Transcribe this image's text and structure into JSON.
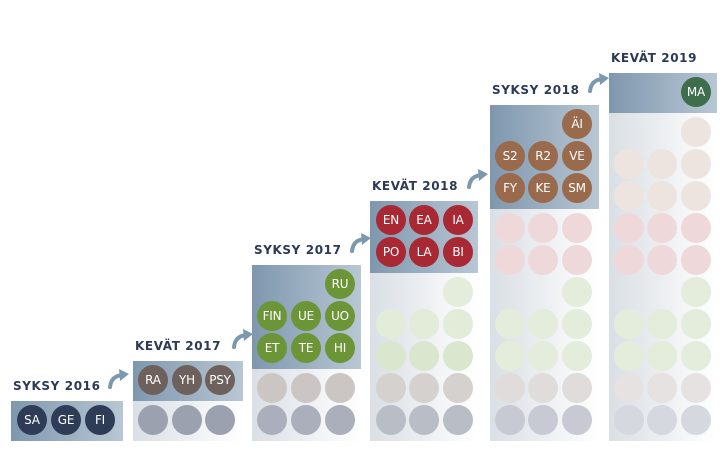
{
  "colors": {
    "navy": "#2f3c58",
    "taupe": "#6e605b",
    "green": "#6b9536",
    "red": "#a82934",
    "brown": "#9a6a4d",
    "darkgreen": "#3e6e4c",
    "arrow": "#7c98ad",
    "title": "#2c3a55"
  },
  "columns": [
    {
      "title": "SYKSY 2016",
      "highlight_color": "#2f3c58",
      "highlight_rows": [
        [
          "SA",
          "GE",
          "FI"
        ]
      ],
      "history_rows": []
    },
    {
      "title": "KEVÄT 2017",
      "highlight_color": "#6e605b",
      "highlight_rows": [
        [
          "RA",
          "YH",
          "PSY"
        ]
      ],
      "history_rows": [
        [
          "navy",
          "navy",
          "navy"
        ]
      ]
    },
    {
      "title": "SYKSY 2017",
      "highlight_color": "#6b9536",
      "highlight_rows": [
        [
          "",
          "",
          "RU"
        ],
        [
          "FIN",
          "UE",
          "UO"
        ],
        [
          "ET",
          "TE",
          "HI"
        ]
      ],
      "history_rows": [
        [
          "taupe",
          "taupe",
          "taupe"
        ],
        [
          "navy",
          "navy",
          "navy"
        ]
      ]
    },
    {
      "title": "KEVÄT 2018",
      "highlight_color": "#a82934",
      "highlight_rows": [
        [
          "EN",
          "EA",
          "IA"
        ],
        [
          "PO",
          "LA",
          "BI"
        ]
      ],
      "history_rows": [
        [
          "",
          "",
          "green"
        ],
        [
          "green",
          "green",
          "green"
        ],
        [
          "green",
          "green",
          "green"
        ],
        [
          "taupe",
          "taupe",
          "taupe"
        ],
        [
          "navy",
          "navy",
          "navy"
        ]
      ]
    },
    {
      "title": "SYKSY 2018",
      "highlight_color": "#9a6a4d",
      "highlight_rows": [
        [
          "",
          "",
          "ÄI"
        ],
        [
          "S2",
          "R2",
          "VE"
        ],
        [
          "FY",
          "KE",
          "SM"
        ]
      ],
      "history_rows": [
        [
          "red",
          "red",
          "red"
        ],
        [
          "red",
          "red",
          "red"
        ],
        [
          "",
          "",
          "green"
        ],
        [
          "green",
          "green",
          "green"
        ],
        [
          "green",
          "green",
          "green"
        ],
        [
          "taupe",
          "taupe",
          "taupe"
        ],
        [
          "navy",
          "navy",
          "navy"
        ]
      ]
    },
    {
      "title": "KEVÄT 2019",
      "highlight_color": "#3e6e4c",
      "highlight_rows": [
        [
          "",
          "",
          "MA"
        ]
      ],
      "history_rows": [
        [
          "",
          "",
          "brown"
        ],
        [
          "brown",
          "brown",
          "brown"
        ],
        [
          "brown",
          "brown",
          "brown"
        ],
        [
          "red",
          "red",
          "red"
        ],
        [
          "red",
          "red",
          "red"
        ],
        [
          "",
          "",
          "green"
        ],
        [
          "green",
          "green",
          "green"
        ],
        [
          "green",
          "green",
          "green"
        ],
        [
          "taupe",
          "taupe",
          "taupe"
        ],
        [
          "navy",
          "navy",
          "navy"
        ]
      ]
    }
  ]
}
